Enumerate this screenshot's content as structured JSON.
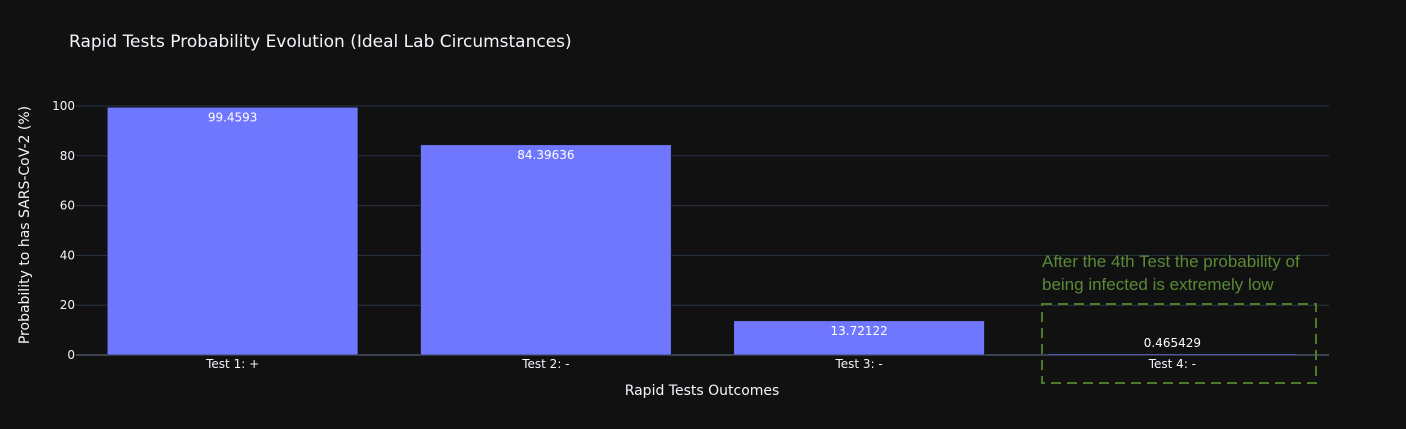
{
  "chart_data": {
    "type": "bar",
    "title": "Rapid Tests Probability Evolution (Ideal Lab Circumstances)",
    "xlabel": "Rapid Tests Outcomes",
    "ylabel": "Probability to has SARS-CoV-2 (%)",
    "categories": [
      "Test 1: +",
      "Test 2: -",
      "Test 3: -",
      "Test 4: -"
    ],
    "values": [
      99.4593,
      84.39636,
      13.72122,
      0.465429
    ],
    "value_labels": [
      "99.4593",
      "84.39636",
      "13.72122",
      "0.465429"
    ],
    "ylim": [
      0,
      100
    ],
    "yticks": [
      "0",
      "20",
      "40",
      "60",
      "80",
      "100"
    ],
    "grid": true,
    "bar_color": "#7077ff",
    "annotation": {
      "text_line1": "After the 4th Test the probability of",
      "text_line2": "being infected is extremely low",
      "color": "#5a8a36",
      "highlights_category": "Test 4: -"
    }
  }
}
